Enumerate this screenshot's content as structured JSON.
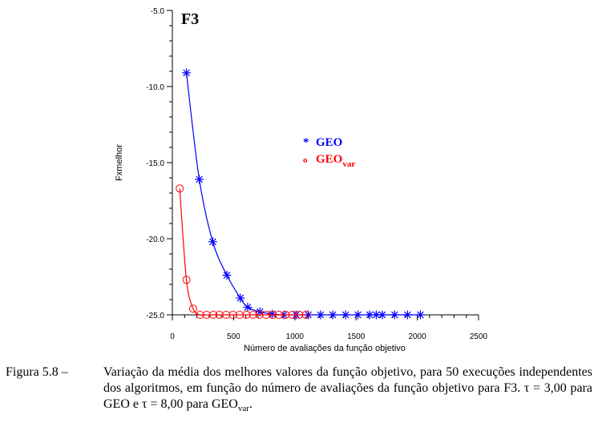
{
  "chart_data": {
    "type": "scatter",
    "title": "F3",
    "xlabel": "Número de avaliações da função objetivo",
    "ylabel": "Fxmelhor",
    "xlim": [
      0,
      2500
    ],
    "ylim": [
      -25,
      -5
    ],
    "x_ticks": [
      0,
      500,
      1000,
      1500,
      2000,
      2500
    ],
    "x_tick_labels": [
      "0",
      "500",
      "1000",
      "1500",
      "2000",
      "2500"
    ],
    "y_ticks": [
      -5,
      -10,
      -15,
      -20,
      -25
    ],
    "y_tick_labels": [
      "-5.0",
      "-10.0",
      "-15.0",
      "-20.0",
      "-25.0"
    ],
    "grid": false,
    "legend_position": "center-right",
    "series": [
      {
        "name": "GEO",
        "marker": "*",
        "color": "#0000ff",
        "x": [
          115,
          220,
          330,
          445,
          555,
          615,
          715,
          815,
          910,
          1010,
          1110,
          1210,
          1310,
          1415,
          1515,
          1610,
          1665,
          1715,
          1815,
          1920,
          2025
        ],
        "y": [
          -9.1,
          -16.1,
          -20.2,
          -22.4,
          -23.9,
          -24.5,
          -24.8,
          -24.95,
          -25.0,
          -25.0,
          -25.0,
          -25.0,
          -25.0,
          -25.0,
          -25.0,
          -25.0,
          -25.0,
          -25.0,
          -25.0,
          -25.0,
          -25.0
        ]
      },
      {
        "name_main": "GEO",
        "name_sub": "var",
        "marker": "o",
        "color": "#ff0000",
        "x": [
          60,
          115,
          170,
          225,
          280,
          335,
          385,
          440,
          495,
          550,
          605,
          660,
          710,
          765,
          820,
          870,
          925,
          980,
          1035,
          1090
        ],
        "y": [
          -16.7,
          -22.7,
          -24.6,
          -25.0,
          -25.0,
          -25.0,
          -25.0,
          -25.0,
          -25.0,
          -25.0,
          -25.0,
          -25.0,
          -25.0,
          -25.0,
          -25.0,
          -25.0,
          -25.0,
          -25.0,
          -25.0,
          -25.0
        ]
      }
    ]
  },
  "caption": {
    "label": "Figura 5.8 –",
    "text_main": "Variação da média dos melhores valores da função objetivo, para 50 execuções independentes dos algoritmos, em função do número de avaliações da função objetivo para F3. τ = 3,00 para GEO e τ = 8,00 para GEO",
    "text_sub": "var",
    "text_end": "."
  }
}
